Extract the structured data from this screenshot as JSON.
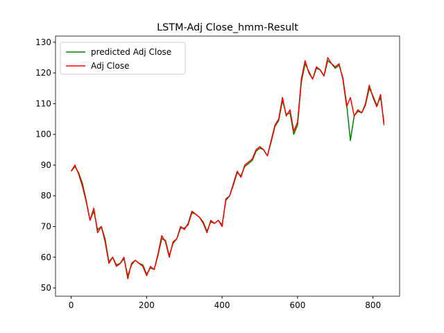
{
  "chart_data": {
    "type": "line",
    "title": "LSTM-Adj Close_hmm-Result",
    "x": [
      0,
      10,
      20,
      30,
      40,
      50,
      60,
      70,
      80,
      90,
      100,
      110,
      120,
      130,
      140,
      150,
      160,
      170,
      180,
      190,
      200,
      210,
      220,
      230,
      240,
      250,
      260,
      270,
      280,
      290,
      300,
      310,
      320,
      330,
      340,
      350,
      360,
      370,
      380,
      390,
      400,
      410,
      420,
      430,
      440,
      450,
      460,
      470,
      480,
      490,
      500,
      510,
      520,
      530,
      540,
      550,
      560,
      570,
      580,
      590,
      600,
      610,
      620,
      630,
      640,
      650,
      660,
      670,
      680,
      690,
      700,
      710,
      720,
      730,
      740,
      750,
      760,
      770,
      780,
      790,
      800,
      810,
      820,
      829
    ],
    "series": [
      {
        "name": "predicted Adj Close",
        "color": "#008000",
        "values": [
          88,
          89.5,
          87.5,
          84,
          78.5,
          72,
          75,
          69,
          70,
          66,
          58.5,
          60,
          57.5,
          58,
          59.5,
          54,
          57.5,
          59,
          58,
          57.5,
          54.5,
          56.5,
          56,
          60.5,
          66,
          65.5,
          60.5,
          64.5,
          66,
          69.5,
          69.5,
          70.5,
          74.5,
          74,
          73,
          71.5,
          68.5,
          71.5,
          71,
          72,
          70.5,
          78.5,
          80,
          83.5,
          87.5,
          86.5,
          89.5,
          90.5,
          91.5,
          94.5,
          95.5,
          95,
          93,
          97.5,
          102.5,
          104.5,
          111,
          106.5,
          107,
          100,
          103,
          117,
          123,
          120.5,
          118,
          121.5,
          121,
          119,
          124,
          123,
          121.5,
          122.5,
          118.5,
          110,
          98,
          106,
          107.5,
          107,
          109.5,
          115,
          112.5,
          109.5,
          112,
          104
        ]
      },
      {
        "name": "Adj Close",
        "color": "#ff0000",
        "values": [
          88,
          90,
          87,
          83,
          78,
          72,
          76,
          68,
          70,
          65,
          58,
          60,
          57,
          58,
          60,
          53,
          58,
          59,
          58,
          57,
          54,
          57,
          56,
          61,
          67,
          65,
          60,
          65,
          66,
          70,
          69,
          71,
          75,
          74,
          73,
          71,
          68,
          72,
          71,
          72,
          70,
          79,
          80,
          84,
          88,
          86,
          90,
          91,
          92,
          95,
          96,
          95,
          93,
          98,
          103,
          105,
          112,
          106,
          108,
          101,
          104,
          118,
          124,
          120,
          118,
          122,
          121,
          119,
          125,
          123,
          122,
          123,
          118,
          109,
          112,
          106,
          108,
          107,
          110,
          116,
          112,
          109,
          113,
          103
        ]
      }
    ],
    "xlim": [
      -41.45,
      870.45
    ],
    "ylim": [
      47.3,
      132.0
    ],
    "xticks": [
      0,
      200,
      400,
      600,
      800
    ],
    "yticks": [
      50,
      60,
      70,
      80,
      90,
      100,
      110,
      120,
      130
    ],
    "grid": false,
    "legend": "upper-left"
  }
}
